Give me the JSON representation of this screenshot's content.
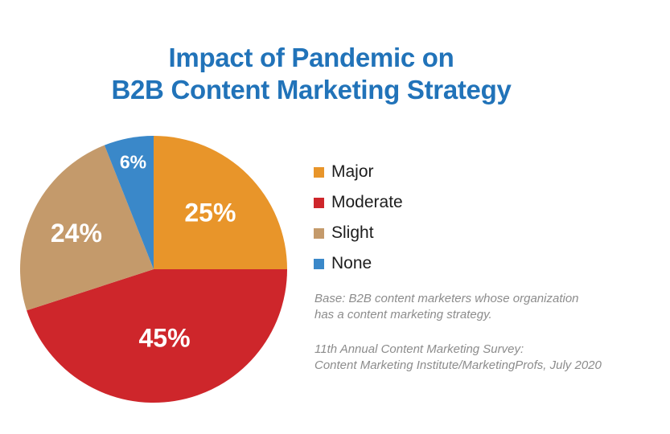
{
  "header": {
    "title_line1": "Impact of Pandemic on",
    "title_line2": "B2B Content Marketing Strategy"
  },
  "theme": {
    "title_color": "#2173B9",
    "legend_text_color": "#1d1d1d",
    "note_color": "#8c8c8c",
    "background": "#ffffff",
    "slice_label_color": "#ffffff"
  },
  "chart_data": {
    "type": "pie",
    "title": "Impact of Pandemic on B2B Content Marketing Strategy",
    "categories": [
      "Major",
      "Moderate",
      "Slight",
      "None"
    ],
    "values": [
      25,
      45,
      24,
      6
    ],
    "slice_labels": [
      "25%",
      "45%",
      "24%",
      "6%"
    ],
    "colors": [
      "#E8952A",
      "#CE262B",
      "#C49A6B",
      "#3A88C9"
    ],
    "start_angle_deg": 0,
    "direction": "clockwise",
    "legend_position": "right",
    "label_radius_frac": [
      0.6,
      0.52,
      0.64,
      0.82
    ],
    "label_font_px": [
      32,
      32,
      32,
      23
    ]
  },
  "notes": {
    "base_line1": "Base: B2B content marketers whose organization",
    "base_line2": "has a content marketing strategy.",
    "source_line1": "11th Annual Content Marketing Survey:",
    "source_line2": "Content Marketing Institute/MarketingProfs, July 2020"
  }
}
